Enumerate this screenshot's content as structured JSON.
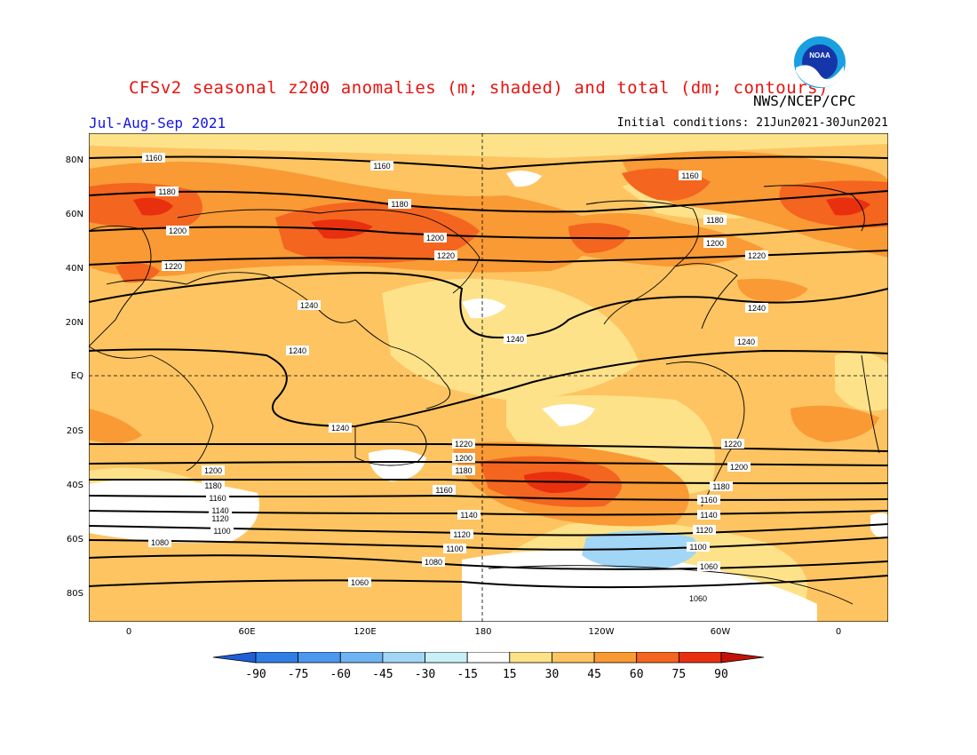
{
  "header": {
    "title": "CFSv2 seasonal z200 anomalies (m; shaded) and total (dm; contours)",
    "agency": "NWS/NCEP/CPC",
    "period": "Jul-Aug-Sep 2021",
    "initial_conditions": "Initial conditions: 21Jun2021-30Jun2021",
    "logo_text": "NOAA"
  },
  "axes": {
    "lat_labels": [
      "80N",
      "60N",
      "40N",
      "20N",
      "EQ",
      "20S",
      "40S",
      "60S",
      "80S"
    ],
    "lon_labels": [
      "0",
      "60E",
      "120E",
      "180",
      "120W",
      "60W",
      "0"
    ]
  },
  "contour_labels": [
    "1160",
    "1160",
    "1160",
    "1180",
    "1180",
    "1180",
    "1200",
    "1200",
    "1200",
    "1220",
    "1220",
    "1220",
    "1240",
    "1240",
    "1240",
    "1240",
    "1240",
    "1240",
    "1220",
    "1220",
    "1200",
    "1200",
    "1200",
    "1180",
    "1180",
    "1180",
    "1160",
    "1160",
    "1160",
    "1140",
    "1140",
    "1140",
    "1120",
    "1120",
    "1120",
    "1100",
    "1100",
    "1100",
    "1080",
    "1080",
    "1060",
    "1060",
    "1060"
  ],
  "colorbar": {
    "labels": [
      "-90",
      "-75",
      "-60",
      "-45",
      "-30",
      "-15",
      "15",
      "30",
      "45",
      "60",
      "75",
      "90"
    ],
    "colors": [
      "#1e5fd6",
      "#2f7ee6",
      "#4c97ef",
      "#6fb3f3",
      "#a2d6f6",
      "#c8f0f6",
      "#ffffff",
      "#fde28a",
      "#fdc461",
      "#f99a35",
      "#f4651f",
      "#e8300f",
      "#c41208"
    ]
  },
  "colors": {
    "title": "#e8130f",
    "period": "#1515e0",
    "base_fill": "#fdc461"
  }
}
